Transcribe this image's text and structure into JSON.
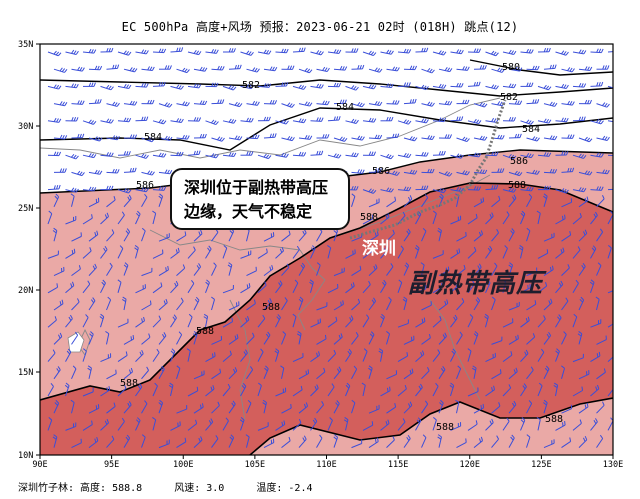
{
  "title": "EC 500hPa 高度+风场  预报：2023-06-21 02时 (018H) 跳点(12)",
  "lat_ticks": [
    "35N",
    "30N",
    "25N",
    "20N",
    "15N",
    "10N"
  ],
  "lon_ticks": [
    "90E",
    "95E",
    "100E",
    "105E",
    "110E",
    "115E",
    "120E",
    "125E",
    "130E"
  ],
  "contour_labels": [
    "580",
    "582",
    "582",
    "584",
    "584",
    "584",
    "586",
    "586",
    "586",
    "588",
    "588",
    "588",
    "588",
    "588",
    "588"
  ],
  "annotation": {
    "callout_line1": "深圳位于副热带高压",
    "callout_line2": "边缘，天气不稳定",
    "city": "深圳",
    "system": "副热带高压"
  },
  "footer": {
    "station": "深圳竹子林: 高度: 588.8",
    "wind": "风速: 3.0",
    "temp": "温度: -2.4"
  },
  "colors": {
    "fill_586": "#eaa9a6",
    "fill_588": "#d35f5c",
    "wind_barb": "#3a4ed8",
    "contour": "#000000",
    "land": "#888888"
  }
}
